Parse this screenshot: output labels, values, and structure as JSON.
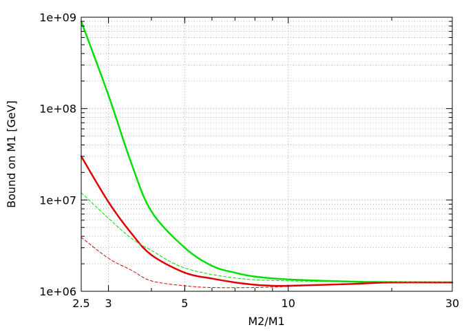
{
  "chart_data": {
    "type": "line",
    "title": "",
    "xlabel": "M2/M1",
    "ylabel": "Bound on M1 [GeV]",
    "x_scale": "log",
    "y_scale": "log",
    "xlim": [
      2.5,
      30
    ],
    "ylim": [
      1000000,
      1000000000
    ],
    "grid": true,
    "x_ticks": [
      {
        "value": 2.5,
        "label": "2.5"
      },
      {
        "value": 3,
        "label": "3"
      },
      {
        "value": 5,
        "label": "5"
      },
      {
        "value": 10,
        "label": "10"
      },
      {
        "value": 30,
        "label": "30"
      }
    ],
    "y_ticks": [
      {
        "value": 1000000,
        "label": "1e+06"
      },
      {
        "value": 10000000,
        "label": "1e+07"
      },
      {
        "value": 100000000,
        "label": "1e+08"
      },
      {
        "value": 1000000000,
        "label": "1e+09"
      }
    ],
    "series": [
      {
        "color": "#00e000",
        "style": "solid",
        "width": 2.5,
        "points": [
          [
            2.5,
            900000000
          ],
          [
            3,
            140000000
          ],
          [
            3.5,
            25000000
          ],
          [
            4,
            7500000
          ],
          [
            5,
            3000000
          ],
          [
            6,
            1900000
          ],
          [
            7,
            1600000
          ],
          [
            8,
            1450000
          ],
          [
            10,
            1350000
          ],
          [
            15,
            1280000
          ],
          [
            20,
            1260000
          ],
          [
            30,
            1250000
          ]
        ]
      },
      {
        "color": "#e00000",
        "style": "solid",
        "width": 2.5,
        "points": [
          [
            2.5,
            30000000
          ],
          [
            3,
            9500000
          ],
          [
            3.5,
            4300000
          ],
          [
            4,
            2500000
          ],
          [
            5,
            1600000
          ],
          [
            6,
            1380000
          ],
          [
            7,
            1250000
          ],
          [
            8,
            1180000
          ],
          [
            9,
            1150000
          ],
          [
            10,
            1150000
          ],
          [
            15,
            1200000
          ],
          [
            20,
            1250000
          ],
          [
            30,
            1250000
          ]
        ]
      },
      {
        "color": "#00e000",
        "style": "dashed",
        "width": 1,
        "points": [
          [
            2.5,
            12000000
          ],
          [
            3,
            6300000
          ],
          [
            3.5,
            3800000
          ],
          [
            4,
            2800000
          ],
          [
            5,
            1800000
          ],
          [
            7,
            1400000
          ],
          [
            10,
            1300000
          ],
          [
            20,
            1270000
          ],
          [
            30,
            1250000
          ]
        ]
      },
      {
        "color": "#e00000",
        "style": "dashed",
        "width": 1,
        "points": [
          [
            2.5,
            3900000
          ],
          [
            3,
            2300000
          ],
          [
            3.5,
            1700000
          ],
          [
            4,
            1300000
          ],
          [
            5,
            1150000
          ],
          [
            6,
            1100000
          ],
          [
            8,
            1100000
          ],
          [
            10,
            1130000
          ],
          [
            15,
            1200000
          ],
          [
            20,
            1240000
          ],
          [
            30,
            1250000
          ]
        ]
      }
    ]
  }
}
